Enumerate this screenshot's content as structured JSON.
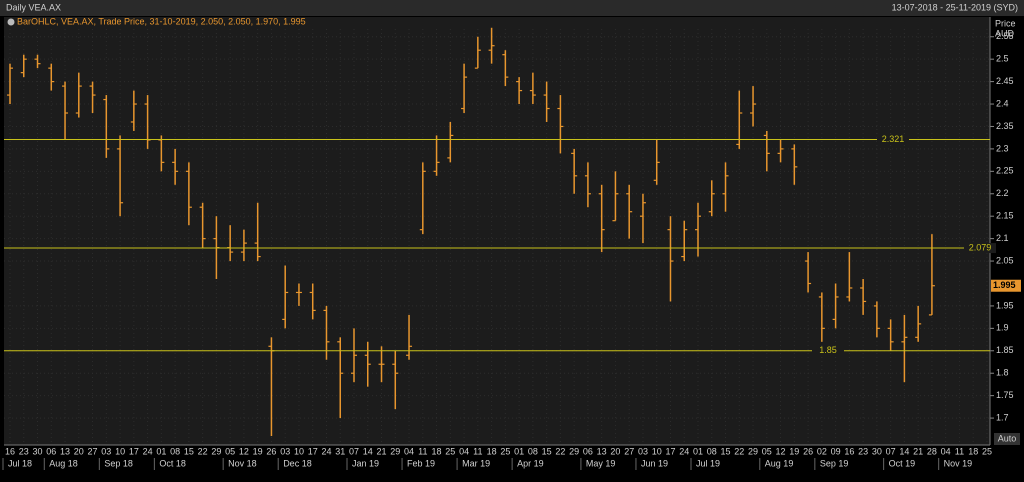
{
  "header": {
    "title": "Daily VEA.AX",
    "range": "13-07-2018 - 25-11-2019 (SYD)"
  },
  "chart_data": {
    "type": "ohlc",
    "legend": "BarOHLC, VEA.AX, Trade Price, 31-10-2019, 2.050, 2.050, 1.970, 1.995",
    "y_label": "Price",
    "unit": "AUD",
    "color": "#e8962e",
    "grid": true,
    "ylim": [
      1.64,
      2.594
    ],
    "yticks": [
      1.7,
      1.75,
      1.8,
      1.85,
      1.9,
      1.95,
      2.05,
      2.1,
      2.15,
      2.2,
      2.25,
      2.3,
      2.35,
      2.4,
      2.45,
      2.5,
      2.55
    ],
    "months": [
      {
        "label": "Jul 18",
        "days": [
          "16",
          "23",
          "30"
        ]
      },
      {
        "label": "Aug 18",
        "days": [
          "06",
          "13",
          "20",
          "27"
        ]
      },
      {
        "label": "Sep 18",
        "days": [
          "03",
          "10",
          "17",
          "24"
        ]
      },
      {
        "label": "Oct 18",
        "days": [
          "01",
          "08",
          "15",
          "22",
          "29"
        ]
      },
      {
        "label": "Nov 18",
        "days": [
          "05",
          "12",
          "19",
          "26"
        ]
      },
      {
        "label": "Dec 18",
        "days": [
          "03",
          "10",
          "17",
          "24",
          "31"
        ]
      },
      {
        "label": "Jan 19",
        "days": [
          "07",
          "14",
          "21",
          "29"
        ]
      },
      {
        "label": "Feb 19",
        "days": [
          "04",
          "11",
          "18",
          "25"
        ]
      },
      {
        "label": "Mar 19",
        "days": [
          "04",
          "11",
          "18",
          "25"
        ]
      },
      {
        "label": "Apr 19",
        "days": [
          "01",
          "08",
          "15",
          "22",
          "29"
        ]
      },
      {
        "label": "May 19",
        "days": [
          "06",
          "13",
          "20",
          "27"
        ]
      },
      {
        "label": "Jun 19",
        "days": [
          "03",
          "10",
          "17",
          "24"
        ]
      },
      {
        "label": "Jul 19",
        "days": [
          "01",
          "08",
          "15",
          "22",
          "29"
        ]
      },
      {
        "label": "Aug 19",
        "days": [
          "05",
          "12",
          "19",
          "26"
        ]
      },
      {
        "label": "Sep 19",
        "days": [
          "02",
          "09",
          "16",
          "23",
          "30"
        ]
      },
      {
        "label": "Oct 19",
        "days": [
          "07",
          "14",
          "21",
          "28"
        ]
      },
      {
        "label": "Nov 19",
        "days": [
          "04",
          "11",
          "18",
          "25"
        ]
      }
    ],
    "open": [
      2.42,
      2.47,
      2.5,
      2.48,
      2.44,
      2.38,
      2.44,
      2.41,
      2.3,
      2.36,
      2.4,
      2.32,
      2.27,
      2.25,
      2.17,
      2.1,
      2.08,
      2.07,
      2.09,
      1.86,
      1.92,
      1.98,
      1.98,
      1.94,
      1.87,
      1.8,
      1.84,
      1.82,
      1.82,
      1.84,
      2.12,
      2.25,
      2.28,
      2.39,
      2.48,
      2.52,
      2.51,
      2.45,
      2.43,
      2.42,
      2.39,
      2.29,
      2.24,
      2.2,
      2.14,
      2.2,
      2.15,
      2.23,
      2.12,
      2.06,
      2.12,
      2.16,
      2.2,
      2.31,
      2.38,
      2.33,
      2.29,
      2.3,
      2.05,
      1.97,
      1.92,
      1.97,
      1.99,
      1.95,
      1.9,
      1.87,
      1.88,
      1.93
    ],
    "high": [
      2.49,
      2.51,
      2.51,
      2.49,
      2.45,
      2.47,
      2.45,
      2.42,
      2.33,
      2.43,
      2.42,
      2.33,
      2.3,
      2.27,
      2.18,
      2.15,
      2.13,
      2.12,
      2.18,
      1.88,
      2.04,
      2.0,
      2.0,
      1.95,
      1.88,
      1.9,
      1.87,
      1.86,
      1.85,
      1.93,
      2.27,
      2.33,
      2.36,
      2.49,
      2.55,
      2.57,
      2.52,
      2.46,
      2.47,
      2.45,
      2.42,
      2.3,
      2.27,
      2.22,
      2.25,
      2.22,
      2.2,
      2.32,
      2.15,
      2.14,
      2.18,
      2.23,
      2.27,
      2.43,
      2.44,
      2.34,
      2.32,
      2.31,
      2.07,
      1.98,
      2.0,
      2.07,
      2.01,
      1.96,
      1.92,
      1.93,
      1.95,
      2.11
    ],
    "low": [
      2.4,
      2.46,
      2.48,
      2.43,
      2.32,
      2.37,
      2.38,
      2.28,
      2.15,
      2.34,
      2.3,
      2.25,
      2.22,
      2.13,
      2.08,
      2.01,
      2.05,
      2.05,
      2.05,
      1.66,
      1.9,
      1.95,
      1.92,
      1.83,
      1.7,
      1.78,
      1.77,
      1.78,
      1.72,
      1.83,
      2.11,
      2.24,
      2.27,
      2.38,
      2.48,
      2.49,
      2.44,
      2.4,
      2.4,
      2.36,
      2.29,
      2.2,
      2.17,
      2.07,
      2.14,
      2.1,
      2.09,
      2.22,
      1.96,
      2.05,
      2.06,
      2.15,
      2.16,
      2.3,
      2.35,
      2.25,
      2.27,
      2.22,
      1.98,
      1.87,
      1.9,
      1.96,
      1.93,
      1.88,
      1.85,
      1.78,
      1.87,
      1.93
    ],
    "close": [
      2.48,
      2.5,
      2.49,
      2.45,
      2.38,
      2.44,
      2.42,
      2.3,
      2.18,
      2.4,
      2.32,
      2.27,
      2.25,
      2.17,
      2.1,
      2.08,
      2.07,
      2.09,
      2.06,
      1.85,
      1.98,
      1.98,
      1.94,
      1.87,
      1.8,
      1.84,
      1.82,
      1.82,
      1.8,
      1.86,
      2.25,
      2.27,
      2.33,
      2.46,
      2.52,
      2.53,
      2.46,
      2.43,
      2.42,
      2.39,
      2.35,
      2.24,
      2.2,
      2.12,
      2.2,
      2.16,
      2.18,
      2.27,
      2.05,
      2.12,
      2.15,
      2.2,
      2.24,
      2.38,
      2.4,
      2.29,
      2.3,
      2.26,
      2.0,
      1.9,
      1.97,
      1.99,
      1.96,
      1.9,
      1.87,
      1.88,
      1.91,
      1.995
    ],
    "levels": [
      2.321,
      2.079,
      1.85
    ],
    "level_color": "#c9c21a",
    "last_price": 1.995
  },
  "controls": {
    "auto": "Auto"
  }
}
